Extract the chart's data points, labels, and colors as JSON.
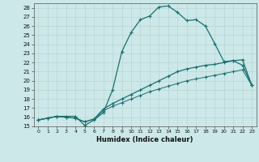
{
  "xlabel": "Humidex (Indice chaleur)",
  "background_color": "#cce8e8",
  "line_color": "#1a7070",
  "xlim": [
    -0.5,
    23.5
  ],
  "ylim": [
    15,
    28.5
  ],
  "xticks": [
    0,
    1,
    2,
    3,
    4,
    5,
    6,
    7,
    8,
    9,
    10,
    11,
    12,
    13,
    14,
    15,
    16,
    17,
    18,
    19,
    20,
    21,
    22,
    23
  ],
  "yticks": [
    15,
    16,
    17,
    18,
    19,
    20,
    21,
    22,
    23,
    24,
    25,
    26,
    27,
    28
  ],
  "curve1_x": [
    0,
    1,
    2,
    3,
    4,
    5,
    6,
    7,
    8,
    9,
    10,
    11,
    12,
    13,
    14,
    15,
    16,
    17,
    18,
    19,
    20,
    21,
    22,
    23
  ],
  "curve1_y": [
    15.7,
    15.9,
    16.1,
    16.1,
    16.1,
    15.1,
    15.7,
    16.5,
    19.0,
    23.2,
    25.3,
    26.7,
    27.1,
    28.1,
    28.2,
    27.5,
    26.6,
    26.7,
    26.0,
    24.1,
    22.1,
    22.2,
    21.7,
    19.5
  ],
  "curve2_x": [
    0,
    1,
    2,
    3,
    4,
    5,
    6,
    7,
    8,
    9,
    10,
    11,
    12,
    13,
    14,
    15,
    16,
    17,
    18,
    19,
    20,
    21,
    22,
    23
  ],
  "curve2_y": [
    15.7,
    15.9,
    16.1,
    16.0,
    15.9,
    15.5,
    15.8,
    16.9,
    17.5,
    18.0,
    18.5,
    19.0,
    19.5,
    20.0,
    20.5,
    21.0,
    21.3,
    21.5,
    21.7,
    21.8,
    22.0,
    22.2,
    22.3,
    19.5
  ],
  "curve3_x": [
    0,
    1,
    2,
    3,
    4,
    5,
    6,
    7,
    8,
    9,
    10,
    11,
    12,
    13,
    14,
    15,
    16,
    17,
    18,
    19,
    20,
    21,
    22,
    23
  ],
  "curve3_y": [
    15.7,
    15.9,
    16.1,
    16.0,
    15.9,
    15.5,
    15.8,
    16.7,
    17.2,
    17.6,
    18.0,
    18.4,
    18.8,
    19.1,
    19.4,
    19.7,
    20.0,
    20.2,
    20.4,
    20.6,
    20.8,
    21.0,
    21.2,
    19.5
  ]
}
